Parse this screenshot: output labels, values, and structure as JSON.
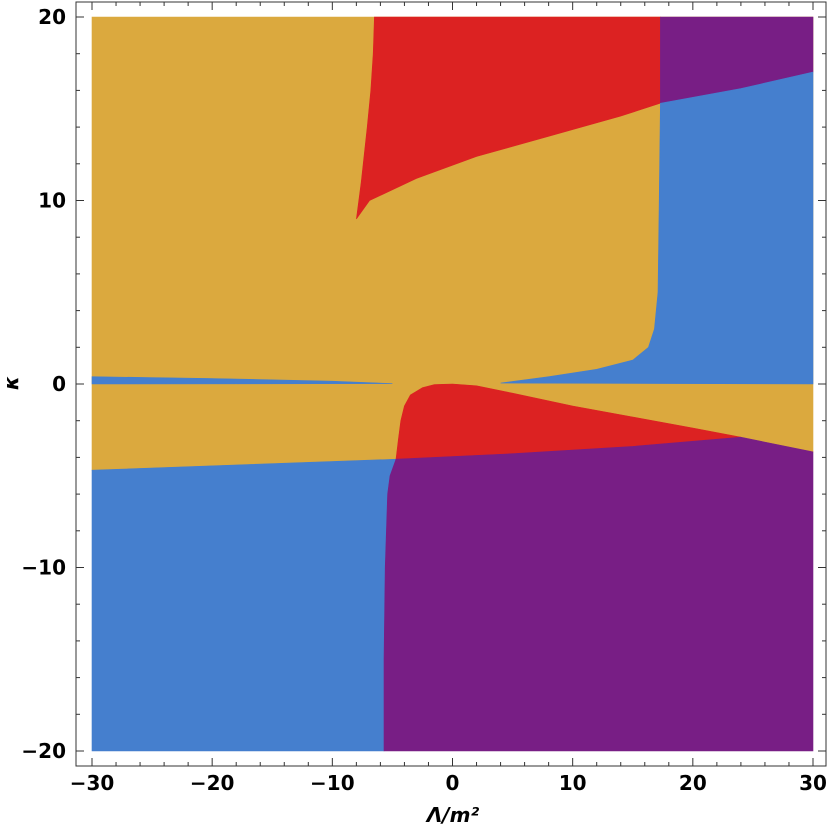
{
  "chart_data": {
    "type": "heatmap",
    "title": "",
    "xlabel": "Λ/m²",
    "ylabel": "κ",
    "xlim": [
      -30,
      30
    ],
    "ylim": [
      -20,
      20
    ],
    "x_ticks": [
      -30,
      -20,
      -10,
      0,
      10,
      20,
      30
    ],
    "y_ticks": [
      -20,
      -10,
      0,
      10,
      20
    ],
    "x_tick_labels": [
      "−30",
      "−20",
      "−10",
      "0",
      "10",
      "20",
      "30"
    ],
    "y_tick_labels": [
      "−20",
      "−10",
      "0",
      "10",
      "20"
    ],
    "grid": false,
    "legend": "none",
    "colors": {
      "yellow": "#DBA93E",
      "red": "#DC2222",
      "purple": "#781E85",
      "blue": "#457FCE"
    },
    "regions": [
      {
        "color": "yellow",
        "points": [
          [
            -30,
            20
          ],
          [
            30,
            20
          ],
          [
            30,
            -3.7
          ],
          [
            -30,
            -4.7
          ]
        ]
      },
      {
        "color": "red",
        "points": [
          [
            -6.5,
            20
          ],
          [
            -6.6,
            18
          ],
          [
            -6.8,
            16
          ],
          [
            -7.1,
            14
          ],
          [
            -7.6,
            11
          ],
          [
            -8,
            9
          ],
          [
            -6.9,
            10
          ],
          [
            -3,
            11.2
          ],
          [
            2,
            12.4
          ],
          [
            8,
            13.5
          ],
          [
            14,
            14.6
          ],
          [
            17.3,
            15.3
          ],
          [
            17.3,
            20
          ]
        ]
      },
      {
        "color": "purple",
        "points": [
          [
            17.3,
            20
          ],
          [
            30,
            20
          ],
          [
            30,
            17
          ],
          [
            24,
            16.1
          ],
          [
            17.3,
            15.3
          ]
        ]
      },
      {
        "color": "blue",
        "points": [
          [
            30,
            17
          ],
          [
            24,
            16.1
          ],
          [
            17.3,
            15.3
          ],
          [
            17.2,
            10
          ],
          [
            17.1,
            5
          ],
          [
            16.8,
            3
          ],
          [
            16.3,
            2
          ],
          [
            15,
            1.3
          ],
          [
            12,
            0.8
          ],
          [
            8,
            0.4
          ],
          [
            4,
            0.05
          ],
          [
            30,
            0
          ]
        ]
      },
      {
        "color": "blue",
        "points": [
          [
            -30,
            0.4
          ],
          [
            -20,
            0.3
          ],
          [
            -10,
            0.15
          ],
          [
            -5,
            0.02
          ],
          [
            -30,
            0
          ]
        ]
      },
      {
        "color": "blue",
        "points": [
          [
            -30,
            -4.7
          ],
          [
            -4.7,
            -4.1
          ],
          [
            -5.2,
            -5
          ],
          [
            -5.4,
            -6
          ],
          [
            -5.5,
            -8
          ],
          [
            -5.6,
            -10
          ],
          [
            -5.7,
            -15
          ],
          [
            -5.7,
            -20
          ],
          [
            -30,
            -20
          ]
        ]
      },
      {
        "color": "red",
        "points": [
          [
            -4.7,
            -4.1
          ],
          [
            -4.5,
            -3
          ],
          [
            -4.3,
            -2
          ],
          [
            -4,
            -1.2
          ],
          [
            -3.5,
            -0.6
          ],
          [
            -2.5,
            -0.2
          ],
          [
            -1.5,
            -0.03
          ],
          [
            0,
            0
          ],
          [
            2,
            -0.1
          ],
          [
            5,
            -0.5
          ],
          [
            10,
            -1.2
          ],
          [
            15,
            -1.8
          ],
          [
            20,
            -2.4
          ],
          [
            24,
            -2.9
          ],
          [
            15,
            -3.4
          ],
          [
            5,
            -3.8
          ],
          [
            0,
            -3.95
          ]
        ]
      },
      {
        "color": "purple",
        "points": [
          [
            -4.7,
            -4.1
          ],
          [
            0,
            -3.95
          ],
          [
            5,
            -3.8
          ],
          [
            15,
            -3.4
          ],
          [
            24,
            -2.9
          ],
          [
            30,
            -3.7
          ],
          [
            30,
            -20
          ],
          [
            -5.7,
            -20
          ],
          [
            -5.7,
            -15
          ],
          [
            -5.6,
            -10
          ],
          [
            -5.5,
            -8
          ],
          [
            -5.4,
            -6
          ],
          [
            -5.2,
            -5
          ]
        ]
      }
    ]
  }
}
